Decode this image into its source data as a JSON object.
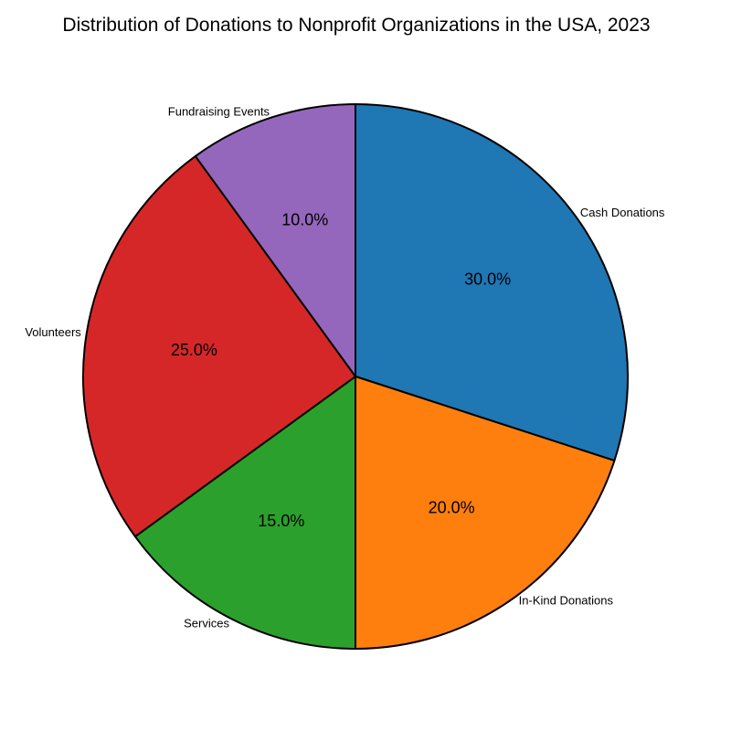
{
  "chart_data": {
    "type": "pie",
    "title": "Distribution of Donations to Nonprofit Organizations in the USA, 2023",
    "categories": [
      "Cash Donations",
      "In-Kind Donations",
      "Services",
      "Volunteers",
      "Fundraising Events"
    ],
    "values": [
      30.0,
      20.0,
      15.0,
      25.0,
      10.0
    ],
    "value_labels": [
      "30.0%",
      "20.0%",
      "15.0%",
      "25.0%",
      "10.0%"
    ],
    "colors": [
      "#1f77b4",
      "#ff7f0e",
      "#2ca02c",
      "#d62728",
      "#9467bd"
    ],
    "start_angle": "top",
    "direction": "clockwise",
    "legend": "none"
  }
}
